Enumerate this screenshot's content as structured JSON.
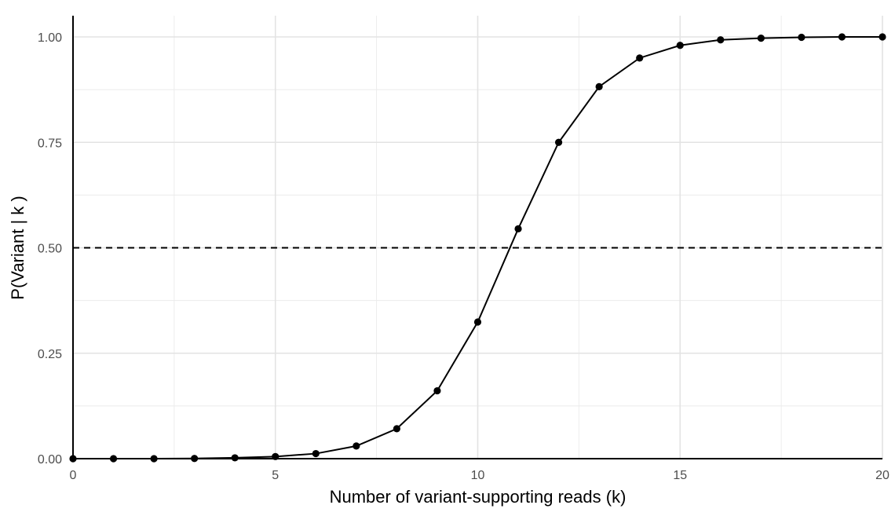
{
  "chart_data": {
    "type": "line",
    "title": "",
    "xlabel": "Number of variant-supporting reads (k)",
    "ylabel": "P(Variant | k )",
    "xlim": [
      0,
      20
    ],
    "ylim": [
      0,
      1
    ],
    "x_ticks": [
      0,
      5,
      10,
      15,
      20
    ],
    "y_ticks": [
      0,
      0.25,
      0.5,
      0.75,
      1
    ],
    "x_tick_labels": [
      "0",
      "5",
      "10",
      "15",
      "20"
    ],
    "y_tick_labels": [
      "0.00",
      "0.25",
      "0.50",
      "0.75",
      "1.00"
    ],
    "grid": true,
    "legend": "none",
    "reference_line": {
      "y": 0.5,
      "style": "dashed",
      "color": "#000000"
    },
    "series": [
      {
        "x": [
          0,
          1,
          2,
          3,
          4,
          5,
          6,
          7,
          8,
          9,
          10,
          11,
          12,
          13,
          14,
          15,
          16,
          17,
          18,
          19,
          20
        ],
        "values": [
          0.0,
          0.0,
          0.0,
          0.0005,
          0.002,
          0.005,
          0.012,
          0.03,
          0.071,
          0.161,
          0.324,
          0.545,
          0.75,
          0.882,
          0.95,
          0.98,
          0.993,
          0.997,
          0.999,
          1.0,
          1.0
        ],
        "color": "#000000"
      }
    ]
  }
}
